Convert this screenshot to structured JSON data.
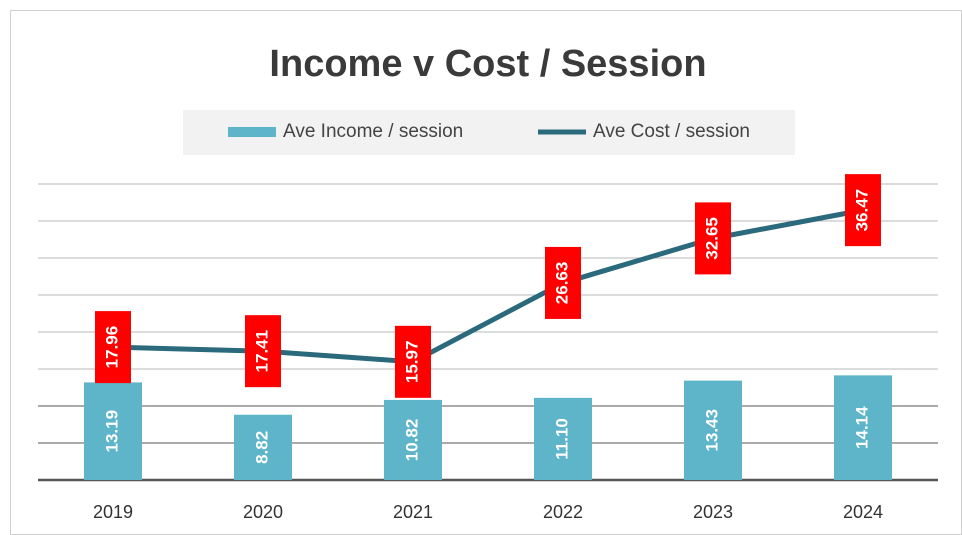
{
  "chart_data": {
    "type": "bar_line",
    "title": "Income v Cost / Session",
    "categories": [
      "2019",
      "2020",
      "2021",
      "2022",
      "2023",
      "2024"
    ],
    "series": [
      {
        "name": "Ave Income / session",
        "type": "bar",
        "color": "#5eb4c9",
        "values": [
          13.19,
          8.82,
          10.82,
          11.1,
          13.43,
          14.14
        ],
        "value_labels": [
          "13.19",
          "8.82",
          "10.82",
          "11.10",
          "13.43",
          "14.14"
        ]
      },
      {
        "name": "Ave Cost / session",
        "type": "line",
        "color": "#2b6a7c",
        "label_color": "#ff0000",
        "values": [
          17.96,
          17.41,
          15.97,
          26.63,
          32.65,
          36.47
        ],
        "value_labels": [
          "17.96",
          "17.41",
          "15.97",
          "26.63",
          "32.65",
          "36.47"
        ]
      }
    ],
    "ylim": [
      0,
      40
    ],
    "yticks": [
      0,
      5,
      10,
      15,
      20,
      25,
      30,
      35,
      40
    ],
    "grid": true,
    "legend": "top"
  }
}
